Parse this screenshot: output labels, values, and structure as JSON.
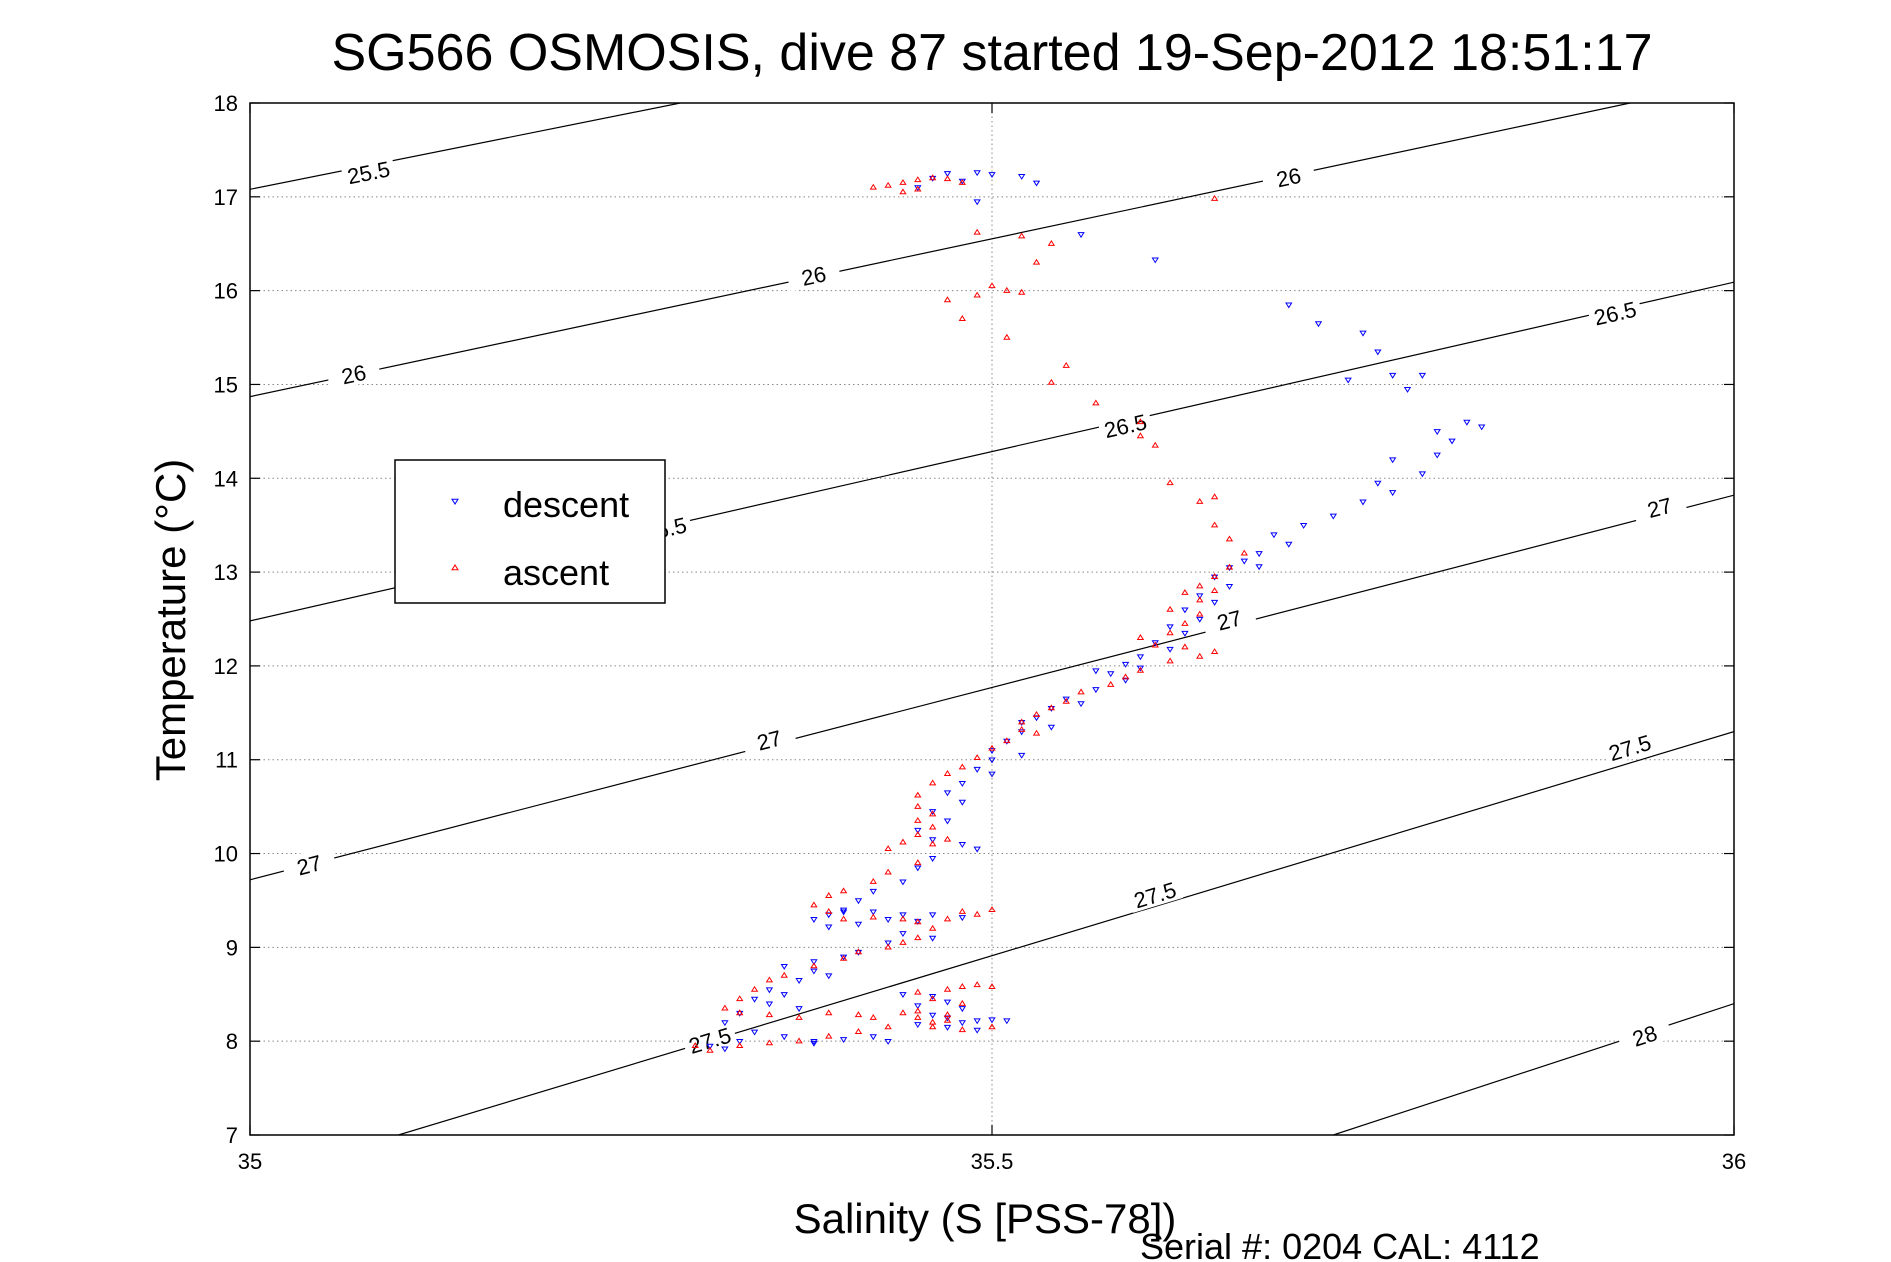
{
  "chart_data": {
    "type": "scatter",
    "title": "SG566 OSMOSIS, dive 87 started 19-Sep-2012 18:51:17",
    "xlabel": "Salinity (S [PSS-78])",
    "ylabel": "Temperature (°C)",
    "xlim": [
      35,
      36
    ],
    "ylim": [
      7,
      18
    ],
    "x_ticks": [
      35,
      35.5,
      36
    ],
    "y_ticks": [
      7,
      8,
      9,
      10,
      11,
      12,
      13,
      14,
      15,
      16,
      17,
      18
    ],
    "grid": true,
    "grid_style": "dotted",
    "legend_position": "left",
    "footer": "Serial #: 0204  CAL: 4112",
    "colors": {
      "descent": "#0000ff",
      "ascent": "#ff0000",
      "contour": "#000000"
    },
    "contours": [
      {
        "label": "25.5",
        "points": [
          [
            35.0,
            17.08
          ],
          [
            35.29,
            18.0
          ]
        ],
        "label_at": [
          [
            35.08,
            17.25
          ]
        ]
      },
      {
        "label": "26",
        "points": [
          [
            35.0,
            14.87
          ],
          [
            35.93,
            18.0
          ]
        ],
        "label_at": [
          [
            35.07,
            15.1
          ],
          [
            35.38,
            16.15
          ],
          [
            35.7,
            17.2
          ]
        ]
      },
      {
        "label": "26.5",
        "points": [
          [
            35.0,
            12.48
          ],
          [
            36.0,
            16.09
          ]
        ],
        "label_at": [
          [
            35.28,
            13.45
          ],
          [
            35.59,
            14.55
          ],
          [
            35.92,
            15.75
          ]
        ]
      },
      {
        "label": "27",
        "points": [
          [
            35.0,
            9.72
          ],
          [
            36.0,
            13.82
          ]
        ],
        "label_at": [
          [
            35.04,
            9.87
          ],
          [
            35.35,
            11.2
          ],
          [
            35.66,
            12.48
          ],
          [
            35.95,
            13.68
          ]
        ]
      },
      {
        "label": "27.5",
        "points": [
          [
            35.1,
            7.0
          ],
          [
            36.0,
            11.3
          ]
        ],
        "label_at": [
          [
            35.31,
            8.0
          ],
          [
            35.61,
            9.55
          ],
          [
            35.93,
            11.12
          ]
        ]
      },
      {
        "label": "28",
        "points": [
          [
            35.73,
            7.0
          ],
          [
            36.0,
            8.4
          ]
        ],
        "label_at": [
          [
            35.94,
            8.05
          ]
        ]
      }
    ],
    "series": [
      {
        "name": "descent",
        "marker": "triangle-down",
        "points": [
          [
            35.47,
            17.25
          ],
          [
            35.49,
            17.26
          ],
          [
            35.46,
            17.2
          ],
          [
            35.48,
            17.17
          ],
          [
            35.5,
            17.24
          ],
          [
            35.45,
            17.1
          ],
          [
            35.52,
            17.22
          ],
          [
            35.53,
            17.15
          ],
          [
            35.49,
            16.95
          ],
          [
            35.56,
            16.6
          ],
          [
            35.61,
            16.33
          ],
          [
            35.7,
            15.85
          ],
          [
            35.72,
            15.65
          ],
          [
            35.75,
            15.55
          ],
          [
            35.76,
            15.35
          ],
          [
            35.74,
            15.05
          ],
          [
            35.77,
            15.1
          ],
          [
            35.79,
            15.1
          ],
          [
            35.78,
            14.95
          ],
          [
            35.82,
            14.6
          ],
          [
            35.8,
            14.5
          ],
          [
            35.81,
            14.4
          ],
          [
            35.83,
            14.55
          ],
          [
            35.8,
            14.25
          ],
          [
            35.77,
            14.2
          ],
          [
            35.79,
            14.05
          ],
          [
            35.76,
            13.95
          ],
          [
            35.77,
            13.85
          ],
          [
            35.75,
            13.75
          ],
          [
            35.73,
            13.6
          ],
          [
            35.71,
            13.5
          ],
          [
            35.69,
            13.4
          ],
          [
            35.7,
            13.3
          ],
          [
            35.68,
            13.2
          ],
          [
            35.67,
            13.12
          ],
          [
            35.66,
            13.05
          ],
          [
            35.68,
            13.06
          ],
          [
            35.65,
            12.95
          ],
          [
            35.66,
            12.85
          ],
          [
            35.64,
            12.75
          ],
          [
            35.65,
            12.68
          ],
          [
            35.63,
            12.6
          ],
          [
            35.64,
            12.5
          ],
          [
            35.62,
            12.42
          ],
          [
            35.63,
            12.35
          ],
          [
            35.61,
            12.25
          ],
          [
            35.62,
            12.18
          ],
          [
            35.6,
            12.1
          ],
          [
            35.59,
            12.02
          ],
          [
            35.6,
            11.98
          ],
          [
            35.58,
            11.92
          ],
          [
            35.57,
            11.95
          ],
          [
            35.59,
            11.85
          ],
          [
            35.57,
            11.75
          ],
          [
            35.55,
            11.65
          ],
          [
            35.56,
            11.6
          ],
          [
            35.54,
            11.55
          ],
          [
            35.53,
            11.45
          ],
          [
            35.52,
            11.4
          ],
          [
            35.54,
            11.35
          ],
          [
            35.52,
            11.3
          ],
          [
            35.51,
            11.2
          ],
          [
            35.5,
            11.1
          ],
          [
            35.52,
            11.05
          ],
          [
            35.5,
            11.0
          ],
          [
            35.49,
            10.9
          ],
          [
            35.5,
            10.85
          ],
          [
            35.48,
            10.75
          ],
          [
            35.47,
            10.65
          ],
          [
            35.48,
            10.55
          ],
          [
            35.46,
            10.45
          ],
          [
            35.47,
            10.35
          ],
          [
            35.45,
            10.25
          ],
          [
            35.46,
            10.15
          ],
          [
            35.48,
            10.1
          ],
          [
            35.49,
            10.05
          ],
          [
            35.46,
            9.95
          ],
          [
            35.45,
            9.85
          ],
          [
            35.44,
            9.7
          ],
          [
            35.42,
            9.6
          ],
          [
            35.41,
            9.5
          ],
          [
            35.4,
            9.4
          ],
          [
            35.39,
            9.35
          ],
          [
            35.38,
            9.3
          ],
          [
            35.4,
            9.38
          ],
          [
            35.42,
            9.38
          ],
          [
            35.44,
            9.35
          ],
          [
            35.46,
            9.35
          ],
          [
            35.48,
            9.32
          ],
          [
            35.45,
            9.28
          ],
          [
            35.43,
            9.3
          ],
          [
            35.41,
            9.25
          ],
          [
            35.39,
            9.22
          ],
          [
            35.44,
            9.15
          ],
          [
            35.46,
            9.1
          ],
          [
            35.43,
            9.05
          ],
          [
            35.41,
            8.95
          ],
          [
            35.4,
            8.9
          ],
          [
            35.38,
            8.85
          ],
          [
            35.36,
            8.8
          ],
          [
            35.38,
            8.75
          ],
          [
            35.39,
            8.7
          ],
          [
            35.37,
            8.65
          ],
          [
            35.35,
            8.55
          ],
          [
            35.36,
            8.5
          ],
          [
            35.34,
            8.45
          ],
          [
            35.35,
            8.4
          ],
          [
            35.37,
            8.35
          ],
          [
            35.33,
            8.3
          ],
          [
            35.32,
            8.2
          ],
          [
            35.34,
            8.1
          ],
          [
            35.36,
            8.05
          ],
          [
            35.38,
            8.0
          ],
          [
            35.4,
            8.02
          ],
          [
            35.42,
            8.05
          ],
          [
            35.43,
            8.0
          ],
          [
            35.38,
            7.98
          ],
          [
            35.44,
            8.5
          ],
          [
            35.46,
            8.48
          ],
          [
            35.47,
            8.42
          ],
          [
            35.45,
            8.38
          ],
          [
            35.48,
            8.35
          ],
          [
            35.46,
            8.28
          ],
          [
            35.47,
            8.25
          ],
          [
            35.48,
            8.2
          ],
          [
            35.49,
            8.22
          ],
          [
            35.5,
            8.23
          ],
          [
            35.51,
            8.22
          ],
          [
            35.45,
            8.18
          ],
          [
            35.47,
            8.15
          ],
          [
            35.49,
            8.12
          ],
          [
            35.31,
            7.95
          ],
          [
            35.32,
            7.92
          ],
          [
            35.33,
            8.0
          ]
        ]
      },
      {
        "name": "ascent",
        "marker": "triangle-up",
        "points": [
          [
            35.43,
            17.12
          ],
          [
            35.44,
            17.15
          ],
          [
            35.45,
            17.18
          ],
          [
            35.46,
            17.2
          ],
          [
            35.47,
            17.19
          ],
          [
            35.48,
            17.15
          ],
          [
            35.45,
            17.08
          ],
          [
            35.42,
            17.1
          ],
          [
            35.44,
            17.05
          ],
          [
            35.65,
            16.98
          ],
          [
            35.49,
            16.62
          ],
          [
            35.52,
            16.58
          ],
          [
            35.54,
            16.5
          ],
          [
            35.53,
            16.3
          ],
          [
            35.5,
            16.05
          ],
          [
            35.51,
            16.0
          ],
          [
            35.49,
            15.95
          ],
          [
            35.52,
            15.98
          ],
          [
            35.47,
            15.9
          ],
          [
            35.48,
            15.7
          ],
          [
            35.51,
            15.5
          ],
          [
            35.55,
            15.2
          ],
          [
            35.54,
            15.02
          ],
          [
            35.57,
            14.8
          ],
          [
            35.6,
            14.6
          ],
          [
            35.61,
            14.35
          ],
          [
            35.6,
            14.45
          ],
          [
            35.62,
            13.95
          ],
          [
            35.64,
            13.75
          ],
          [
            35.65,
            13.8
          ],
          [
            35.65,
            13.5
          ],
          [
            35.66,
            13.35
          ],
          [
            35.67,
            13.2
          ],
          [
            35.66,
            13.05
          ],
          [
            35.65,
            12.95
          ],
          [
            35.64,
            12.85
          ],
          [
            35.63,
            12.78
          ],
          [
            35.65,
            12.8
          ],
          [
            35.64,
            12.7
          ],
          [
            35.62,
            12.6
          ],
          [
            35.64,
            12.55
          ],
          [
            35.63,
            12.45
          ],
          [
            35.62,
            12.35
          ],
          [
            35.6,
            12.3
          ],
          [
            35.61,
            12.22
          ],
          [
            35.63,
            12.2
          ],
          [
            35.65,
            12.15
          ],
          [
            35.64,
            12.1
          ],
          [
            35.62,
            12.05
          ],
          [
            35.6,
            11.95
          ],
          [
            35.59,
            11.88
          ],
          [
            35.58,
            11.8
          ],
          [
            35.56,
            11.72
          ],
          [
            35.55,
            11.62
          ],
          [
            35.54,
            11.55
          ],
          [
            35.53,
            11.48
          ],
          [
            35.52,
            11.4
          ],
          [
            35.52,
            11.32
          ],
          [
            35.53,
            11.28
          ],
          [
            35.51,
            11.2
          ],
          [
            35.5,
            11.12
          ],
          [
            35.49,
            11.02
          ],
          [
            35.48,
            10.92
          ],
          [
            35.47,
            10.85
          ],
          [
            35.46,
            10.75
          ],
          [
            35.45,
            10.62
          ],
          [
            35.45,
            10.5
          ],
          [
            35.46,
            10.42
          ],
          [
            35.45,
            10.35
          ],
          [
            35.46,
            10.28
          ],
          [
            35.45,
            10.2
          ],
          [
            35.47,
            10.15
          ],
          [
            35.46,
            10.1
          ],
          [
            35.44,
            10.12
          ],
          [
            35.43,
            10.05
          ],
          [
            35.45,
            9.9
          ],
          [
            35.43,
            9.8
          ],
          [
            35.42,
            9.7
          ],
          [
            35.4,
            9.6
          ],
          [
            35.39,
            9.55
          ],
          [
            35.38,
            9.45
          ],
          [
            35.39,
            9.38
          ],
          [
            35.4,
            9.3
          ],
          [
            35.42,
            9.32
          ],
          [
            35.44,
            9.3
          ],
          [
            35.45,
            9.27
          ],
          [
            35.47,
            9.3
          ],
          [
            35.49,
            9.35
          ],
          [
            35.5,
            9.4
          ],
          [
            35.48,
            9.38
          ],
          [
            35.46,
            9.2
          ],
          [
            35.45,
            9.1
          ],
          [
            35.44,
            9.05
          ],
          [
            35.43,
            9.0
          ],
          [
            35.41,
            8.95
          ],
          [
            35.4,
            8.88
          ],
          [
            35.38,
            8.8
          ],
          [
            35.36,
            8.7
          ],
          [
            35.35,
            8.65
          ],
          [
            35.34,
            8.55
          ],
          [
            35.33,
            8.45
          ],
          [
            35.32,
            8.35
          ],
          [
            35.33,
            8.3
          ],
          [
            35.35,
            8.28
          ],
          [
            35.37,
            8.25
          ],
          [
            35.39,
            8.3
          ],
          [
            35.41,
            8.28
          ],
          [
            35.42,
            8.25
          ],
          [
            35.44,
            8.3
          ],
          [
            35.45,
            8.32
          ],
          [
            35.47,
            8.28
          ],
          [
            35.46,
            8.2
          ],
          [
            35.43,
            8.15
          ],
          [
            35.41,
            8.1
          ],
          [
            35.39,
            8.05
          ],
          [
            35.37,
            8.0
          ],
          [
            35.35,
            7.98
          ],
          [
            35.33,
            7.95
          ],
          [
            35.31,
            7.9
          ],
          [
            35.3,
            7.95
          ],
          [
            35.45,
            8.52
          ],
          [
            35.47,
            8.55
          ],
          [
            35.48,
            8.58
          ],
          [
            35.49,
            8.6
          ],
          [
            35.5,
            8.58
          ],
          [
            35.46,
            8.45
          ],
          [
            35.48,
            8.4
          ],
          [
            35.46,
            8.15
          ],
          [
            35.48,
            8.12
          ],
          [
            35.5,
            8.15
          ],
          [
            35.47,
            8.22
          ],
          [
            35.45,
            8.25
          ]
        ]
      }
    ]
  }
}
